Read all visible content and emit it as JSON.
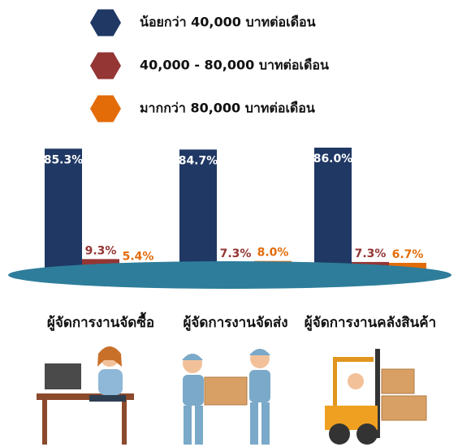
{
  "chart_data": {
    "type": "bar",
    "categories": [
      "ผู้จัดการงานจัดซื้อ",
      "ผู้จัดการงานจัดส่ง",
      "ผู้จัดการงานคลังสินค้า"
    ],
    "series": [
      {
        "name": "น้อยกว่า 40,000 บาทต่อเดือน",
        "color": "#1f3864",
        "values": [
          85.3,
          84.7,
          86.0
        ],
        "value_labels": [
          "85.3%",
          "84.7%",
          "86.0%"
        ]
      },
      {
        "name": "40,000 - 80,000 บาทต่อเดือน",
        "color": "#943634",
        "values": [
          9.3,
          7.3,
          7.3
        ],
        "value_labels": [
          "9.3%",
          "7.3%",
          "7.3%"
        ]
      },
      {
        "name": "มากกว่า 80,000 บาทต่อเดือน",
        "color": "#e36c09",
        "values": [
          5.4,
          8.0,
          6.7
        ],
        "value_labels": [
          "5.4%",
          "8.0%",
          "6.7%"
        ]
      }
    ]
  }
}
